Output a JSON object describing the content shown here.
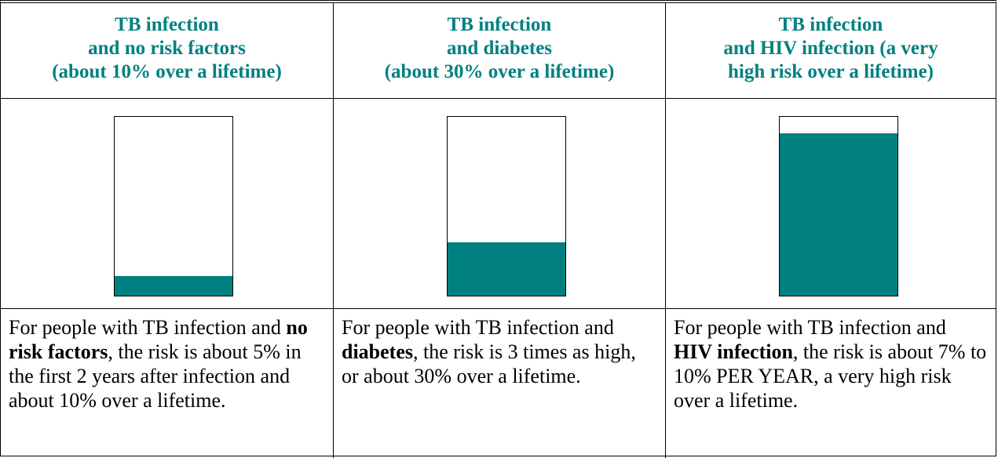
{
  "table": {
    "columns": [
      {
        "header": [
          "TB infection",
          "and no risk factors",
          "(about 10% over a lifetime)"
        ],
        "fill_percent": 11,
        "description": [
          "For people with TB infection and ",
          "no risk factors",
          ", the risk is about 5% in the first 2 years after infection and about 10% over a lifetime."
        ]
      },
      {
        "header": [
          "TB infection",
          "and diabetes",
          "(about 30% over a lifetime)"
        ],
        "fill_percent": 30,
        "description": [
          "For people with TB infection and ",
          "diabetes",
          ", the risk is 3 times as high, or about 30% over a lifetime."
        ]
      },
      {
        "header": [
          "TB infection",
          "and HIV infection (a very",
          "high risk over a lifetime)"
        ],
        "fill_percent": 91,
        "description": [
          "For people with TB infection and ",
          "HIV infection",
          ", the risk is about 7% to 10% PER YEAR, a very high risk over a lifetime."
        ]
      }
    ]
  }
}
